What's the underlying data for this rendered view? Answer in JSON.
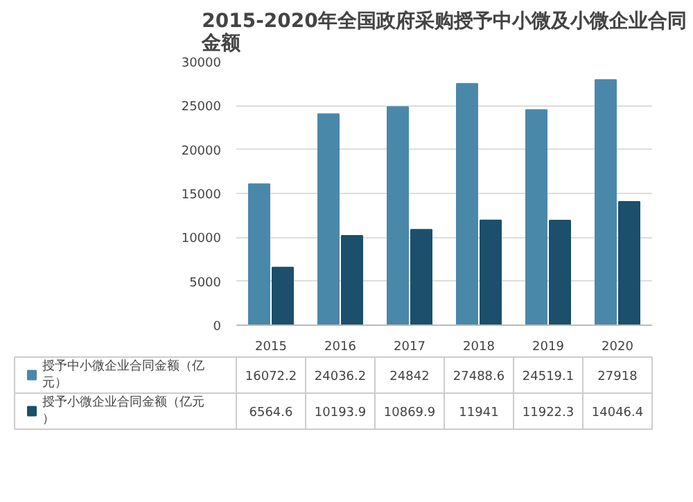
{
  "chart_data": {
    "type": "bar",
    "title": "2015-2020年全国政府采购授予中小微及小微企业合同金额",
    "categories": [
      "2015",
      "2016",
      "2017",
      "2018",
      "2019",
      "2020"
    ],
    "series": [
      {
        "name": "授予中小微企业合同金额（亿元）",
        "color": "#4a88aa",
        "values": [
          16072.2,
          24036.2,
          24842,
          27488.6,
          24519.1,
          27918
        ]
      },
      {
        "name": "授予小微企业合同金额（亿元）",
        "color": "#1b4f6b",
        "values": [
          6564.6,
          10193.9,
          10869.9,
          11941,
          11922.3,
          14046.4
        ]
      }
    ],
    "ylim": [
      0,
      30000
    ],
    "yticks": [
      0,
      5000,
      10000,
      15000,
      20000,
      25000,
      30000
    ],
    "grid": "y",
    "legend": "bottom",
    "data_labels": true
  }
}
